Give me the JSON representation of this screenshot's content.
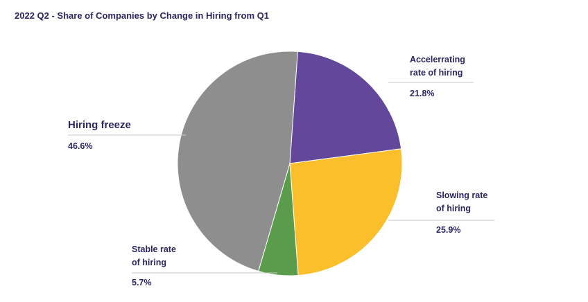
{
  "title": "2022 Q2 - Share of Companies by Change in Hiring from Q1",
  "chart_data": {
    "type": "pie",
    "title": "2022 Q2 - Share of Companies by Change in Hiring from Q1",
    "slices": [
      {
        "label": "Accelerrating rate of hiring",
        "label_lines": [
          "Accelerrating",
          "rate of hiring"
        ],
        "value": 21.8,
        "value_text": "21.8%",
        "color": "#62479a"
      },
      {
        "label": "Slowing rate of hiring",
        "label_lines": [
          "Slowing rate",
          "of hiring"
        ],
        "value": 25.9,
        "value_text": "25.9%",
        "color": "#fbbf2c"
      },
      {
        "label": "Stable rate of hiring",
        "label_lines": [
          "Stable rate",
          "of hiring"
        ],
        "value": 5.7,
        "value_text": "5.7%",
        "color": "#5a9c4b"
      },
      {
        "label": "Hiring freeze",
        "label_lines": [
          "Hiring freeze"
        ],
        "value": 46.6,
        "value_text": "46.6%",
        "color": "#8e8e8e"
      }
    ]
  }
}
